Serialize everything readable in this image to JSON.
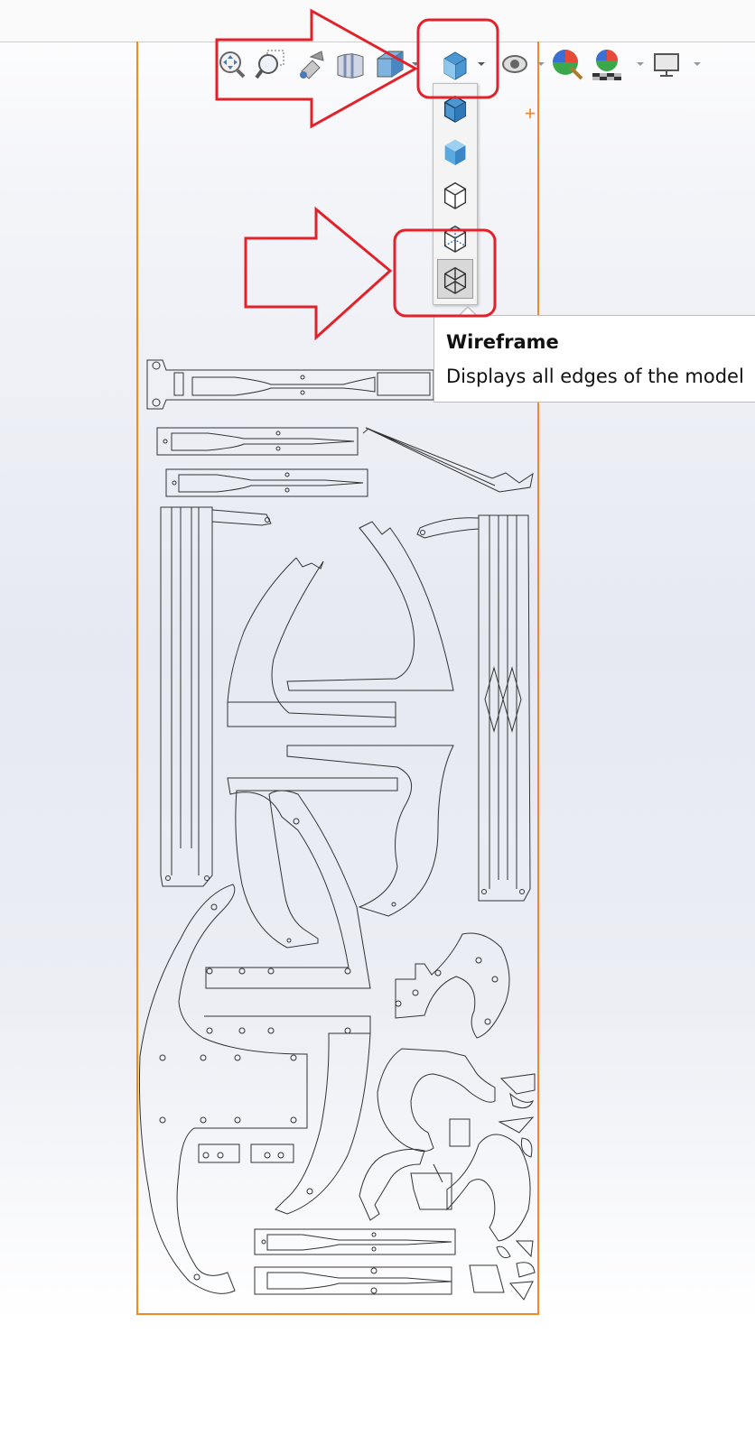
{
  "toolbar": {
    "items": [
      {
        "name": "zoom-to-fit-icon"
      },
      {
        "name": "zoom-to-area-icon"
      },
      {
        "name": "previous-view-icon"
      },
      {
        "name": "section-view-icon"
      },
      {
        "name": "view-orientation-icon"
      },
      {
        "name": "display-style-icon"
      },
      {
        "name": "hide-show-items-icon"
      },
      {
        "name": "edit-appearance-icon"
      },
      {
        "name": "apply-scene-icon"
      },
      {
        "name": "view-settings-icon"
      }
    ]
  },
  "display_style_menu": {
    "options": [
      {
        "name": "shaded-with-edges-icon"
      },
      {
        "name": "shaded-icon"
      },
      {
        "name": "hidden-lines-removed-icon"
      },
      {
        "name": "hidden-lines-visible-icon"
      },
      {
        "name": "wireframe-icon",
        "selected": true
      }
    ]
  },
  "tooltip": {
    "title": "Wireframe",
    "description": "Displays all edges of the model"
  },
  "colors": {
    "annotation_red": "#e2222a",
    "sheet_border": "#f08a24",
    "wire": "#333333"
  }
}
